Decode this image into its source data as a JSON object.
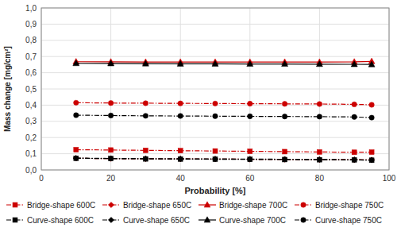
{
  "chart_data": {
    "type": "line",
    "xlabel": "Probability [%]",
    "ylabel": "Mass change [mg/cm²]",
    "x": [
      10,
      20,
      30,
      40,
      50,
      60,
      70,
      80,
      90,
      95
    ],
    "series": [
      {
        "name": "Bridge-shape 600C",
        "color": "#cc0000",
        "marker": "square",
        "line_style": "dashdot",
        "values": [
          0.125,
          0.123,
          0.121,
          0.119,
          0.117,
          0.115,
          0.113,
          0.111,
          0.109,
          0.11
        ]
      },
      {
        "name": "Bridge-shape 650C",
        "color": "#cc0000",
        "marker": "diamond",
        "line_style": "dashdot",
        "values": [
          0.072,
          0.07,
          0.069,
          0.068,
          0.067,
          0.066,
          0.065,
          0.064,
          0.063,
          0.062
        ]
      },
      {
        "name": "Bridge-shape 700C",
        "color": "#cc0000",
        "marker": "triangle",
        "line_style": "solid",
        "values": [
          0.668,
          0.667,
          0.666,
          0.666,
          0.666,
          0.666,
          0.666,
          0.666,
          0.667,
          0.67
        ]
      },
      {
        "name": "Bridge-shape 750C",
        "color": "#cc0000",
        "marker": "circle",
        "line_style": "dashdot",
        "values": [
          0.415,
          0.413,
          0.412,
          0.411,
          0.41,
          0.409,
          0.408,
          0.407,
          0.405,
          0.402
        ]
      },
      {
        "name": "Curve-shape 600C",
        "color": "#000000",
        "marker": "square",
        "line_style": "dashdot",
        "values": [
          0.072,
          0.07,
          0.068,
          0.067,
          0.066,
          0.065,
          0.064,
          0.063,
          0.062,
          0.06
        ]
      },
      {
        "name": "Curve-shape 650C",
        "color": "#000000",
        "marker": "diamond",
        "line_style": "dashdot",
        "values": [
          0.073,
          0.071,
          0.07,
          0.069,
          0.068,
          0.067,
          0.066,
          0.065,
          0.063,
          0.061
        ]
      },
      {
        "name": "Curve-shape 700C",
        "color": "#000000",
        "marker": "triangle",
        "line_style": "solid",
        "values": [
          0.658,
          0.657,
          0.656,
          0.655,
          0.655,
          0.654,
          0.654,
          0.653,
          0.652,
          0.651
        ]
      },
      {
        "name": "Curve-shape 750C",
        "color": "#000000",
        "marker": "circle",
        "line_style": "dashdot",
        "values": [
          0.338,
          0.336,
          0.334,
          0.333,
          0.332,
          0.331,
          0.33,
          0.329,
          0.327,
          0.323
        ]
      }
    ],
    "xlim": [
      0,
      100
    ],
    "ylim": [
      0.0,
      1.0
    ],
    "xticks": [
      0,
      20,
      40,
      60,
      80,
      100
    ],
    "yticks": [
      {
        "value": 0.0,
        "label": "0,0"
      },
      {
        "value": 0.1,
        "label": "0,1"
      },
      {
        "value": 0.2,
        "label": "0,2"
      },
      {
        "value": 0.3,
        "label": "0,3"
      },
      {
        "value": 0.4,
        "label": "0,4"
      },
      {
        "value": 0.5,
        "label": "0,5"
      },
      {
        "value": 0.6,
        "label": "0,6"
      },
      {
        "value": 0.7,
        "label": "0,7"
      },
      {
        "value": 0.8,
        "label": "0,8"
      },
      {
        "value": 0.9,
        "label": "0,9"
      },
      {
        "value": 1.0,
        "label": "1,0"
      }
    ],
    "grid": true,
    "legend": "bottom"
  }
}
